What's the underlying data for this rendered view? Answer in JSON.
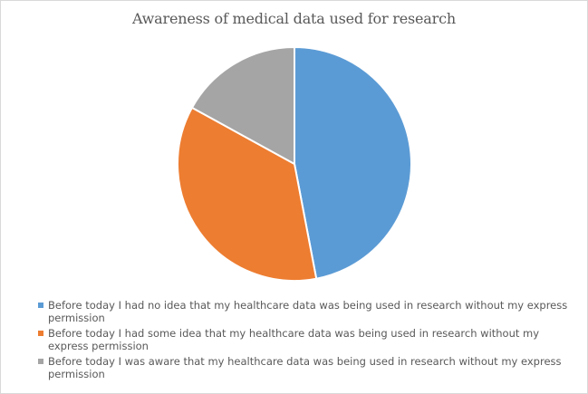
{
  "chart_data": {
    "type": "pie",
    "title": "Awareness of medical data used for research",
    "legend_position": "bottom",
    "series": [
      {
        "name": "Before today I had no idea that my healthcare data was being used in research without my express permission",
        "value": 47,
        "color": "#5b9bd5"
      },
      {
        "name": "Before today I had some idea that my healthcare data was being used in research without my express permission",
        "value": 36,
        "color": "#ed7d31"
      },
      {
        "name": "Before today I was aware that my healthcare data was being used in research without my express permission",
        "value": 17,
        "color": "#a5a5a5"
      }
    ]
  }
}
